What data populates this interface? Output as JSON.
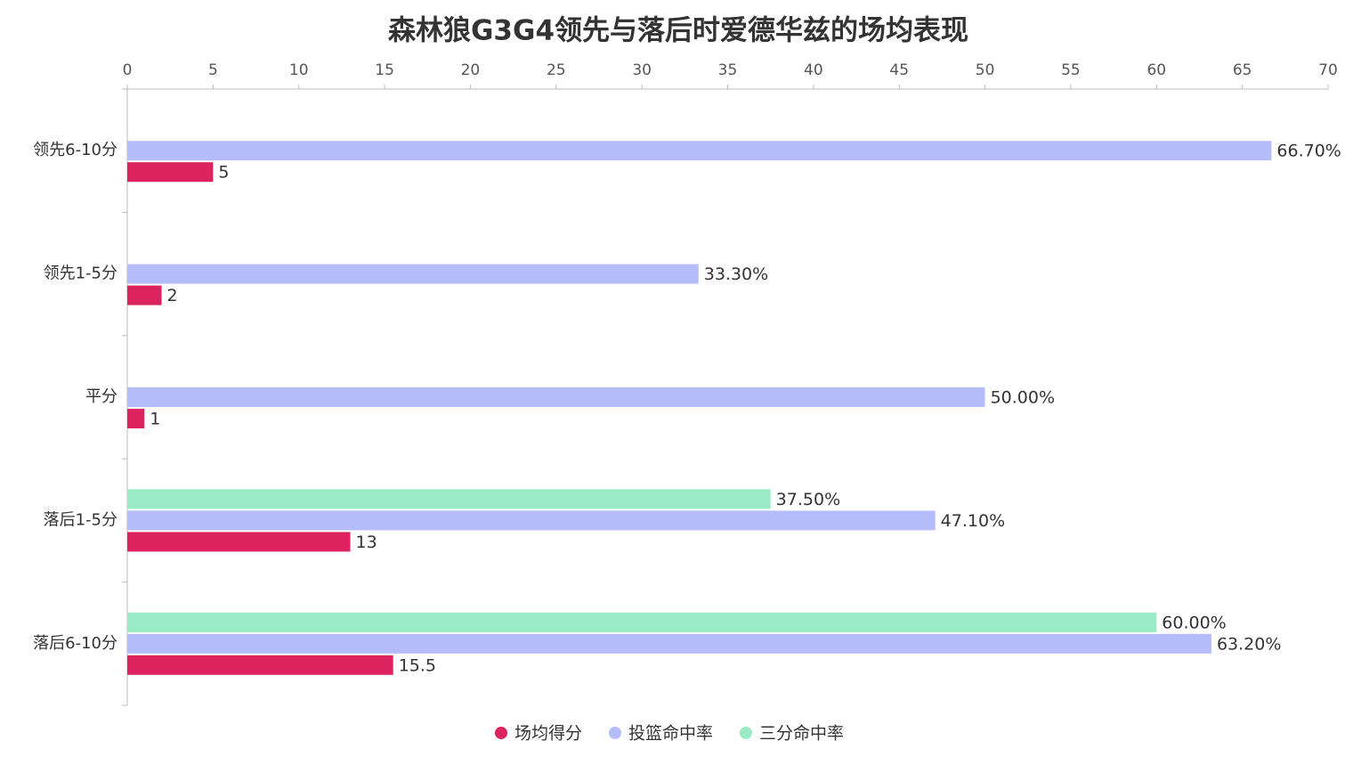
{
  "chart_data": {
    "type": "hbar",
    "title": "森林狼G3G4领先与落后时爱德华兹的场均表现",
    "categories": [
      "领先6-10分",
      "领先1-5分",
      "平分",
      "落后1-5分",
      "落后6-10分"
    ],
    "series": [
      {
        "name": "场均得分",
        "color": "#dc2360",
        "values": [
          5,
          2,
          1,
          13,
          15.5
        ]
      },
      {
        "name": "投篮命中率",
        "color": "#b4bdfa",
        "values": [
          66.7,
          33.3,
          50,
          47.1,
          63.2
        ],
        "value_labels": [
          "66.70%",
          "33.30%",
          "50.00%",
          "47.10%",
          "63.20%"
        ]
      },
      {
        "name": "三分命中率",
        "color": "#98ebc4",
        "values": [
          null,
          null,
          null,
          37.5,
          60
        ],
        "value_labels": [
          null,
          null,
          null,
          "37.50%",
          "60.00%"
        ]
      }
    ],
    "xlim": [
      0,
      70
    ],
    "xticks": [
      0,
      5,
      10,
      15,
      20,
      25,
      30,
      35,
      40,
      45,
      50,
      55,
      60,
      65,
      70
    ],
    "legend": "bottom"
  }
}
